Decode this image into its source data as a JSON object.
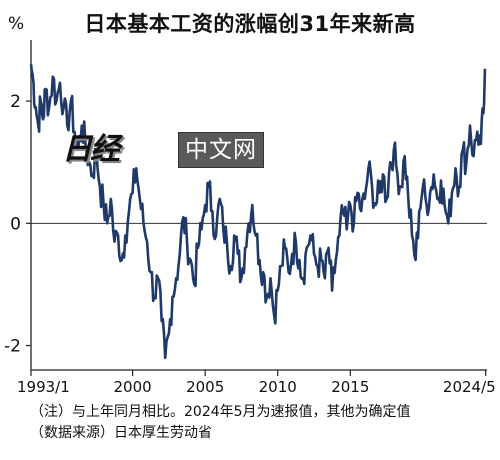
{
  "title": "日本基本工资的涨幅创31年来新高",
  "unit": "%",
  "notes": [
    "（注）与上年同月相比。2024年5月为速报值，其他为确定值",
    "（数据来源）日本厚生劳动省"
  ],
  "watermark": {
    "logo": "日经",
    "text": "中文网"
  },
  "chart_data": {
    "type": "line",
    "title": "日本基本工资的涨幅创31年来新高",
    "xlabel": "",
    "ylabel": "%",
    "xlim": [
      1993.0,
      2024.42
    ],
    "ylim": [
      -2.4,
      3.0
    ],
    "grid": false,
    "yticks": [
      {
        "value": 2,
        "label": "2"
      },
      {
        "value": 0,
        "label": "0"
      },
      {
        "value": -2,
        "label": "-2"
      }
    ],
    "xticks": [
      {
        "value": 1993.0,
        "label": "1993/1"
      },
      {
        "value": 2000.0,
        "label": "2000"
      },
      {
        "value": 2005.0,
        "label": "2005"
      },
      {
        "value": 2010.0,
        "label": "2010"
      },
      {
        "value": 2015.0,
        "label": "2015"
      },
      {
        "value": 2024.33,
        "label": "2024/5"
      }
    ],
    "line_color": "#1f3a68",
    "series": [
      {
        "x": [
          1993.0,
          1993.17,
          1993.33,
          1993.5,
          1993.67,
          1993.83,
          1994.0,
          1994.25,
          1994.5,
          1994.75,
          1995.0,
          1995.25,
          1995.5,
          1995.75,
          1996.0,
          1996.25,
          1996.5,
          1996.75,
          1997.0,
          1997.25,
          1997.5,
          1997.75,
          1998.0,
          1998.25,
          1998.5,
          1998.75,
          1999.0,
          1999.25,
          1999.5,
          1999.75,
          2000.0,
          2000.25,
          2000.5,
          2000.75,
          2001.0,
          2001.25,
          2001.5,
          2001.75,
          2002.0,
          2002.25,
          2002.5,
          2002.75,
          2003.0,
          2003.25,
          2003.5,
          2003.75,
          2004.0,
          2004.25,
          2004.5,
          2004.75,
          2005.0,
          2005.25,
          2005.5,
          2005.75,
          2006.0,
          2006.25,
          2006.5,
          2006.75,
          2007.0,
          2007.25,
          2007.5,
          2007.75,
          2008.0,
          2008.25,
          2008.5,
          2008.75,
          2009.0,
          2009.25,
          2009.5,
          2009.75,
          2010.0,
          2010.25,
          2010.5,
          2010.75,
          2011.0,
          2011.25,
          2011.5,
          2011.75,
          2012.0,
          2012.25,
          2012.5,
          2012.75,
          2013.0,
          2013.25,
          2013.5,
          2013.75,
          2014.0,
          2014.25,
          2014.5,
          2014.75,
          2015.0,
          2015.25,
          2015.5,
          2015.75,
          2016.0,
          2016.25,
          2016.5,
          2016.75,
          2017.0,
          2017.25,
          2017.5,
          2017.75,
          2018.0,
          2018.25,
          2018.5,
          2018.75,
          2019.0,
          2019.25,
          2019.5,
          2019.75,
          2020.0,
          2020.25,
          2020.5,
          2020.75,
          2021.0,
          2021.25,
          2021.5,
          2021.75,
          2022.0,
          2022.25,
          2022.5,
          2022.75,
          2023.0,
          2023.25,
          2023.5,
          2023.75,
          2024.0,
          2024.17,
          2024.33
        ],
        "y": [
          2.6,
          2.3,
          1.9,
          1.6,
          2.0,
          1.7,
          2.2,
          1.9,
          2.4,
          2.0,
          2.3,
          1.9,
          1.6,
          2.0,
          1.5,
          1.2,
          1.6,
          1.3,
          1.0,
          0.8,
          1.2,
          0.6,
          0.3,
          0.0,
          0.4,
          -0.3,
          -0.2,
          -0.6,
          -0.2,
          0.2,
          0.5,
          0.9,
          0.4,
          0.0,
          -0.3,
          -0.8,
          -1.2,
          -0.9,
          -1.6,
          -2.2,
          -1.8,
          -1.2,
          -0.9,
          -0.5,
          0.1,
          -0.3,
          -0.6,
          -1.0,
          -0.4,
          -0.1,
          0.3,
          0.6,
          0.2,
          -0.2,
          0.4,
          -0.1,
          -0.3,
          -0.7,
          -0.2,
          -0.5,
          -0.9,
          -0.4,
          0.0,
          0.3,
          -0.2,
          -0.6,
          -0.8,
          -1.2,
          -0.9,
          -1.5,
          -1.1,
          -0.7,
          -0.4,
          -0.8,
          -0.5,
          -0.3,
          -0.6,
          -0.9,
          -0.4,
          -0.2,
          -0.5,
          -0.7,
          -0.6,
          -0.9,
          -0.4,
          -1.1,
          -0.6,
          -0.2,
          0.2,
          -0.1,
          0.3,
          0.0,
          0.5,
          0.2,
          0.4,
          0.9,
          0.6,
          0.3,
          0.5,
          0.8,
          0.4,
          1.0,
          1.2,
          0.8,
          0.6,
          1.1,
          0.4,
          -0.2,
          -0.6,
          0.2,
          0.6,
          0.3,
          0.5,
          0.8,
          0.4,
          0.7,
          0.3,
          0.0,
          0.5,
          0.9,
          0.6,
          1.2,
          1.0,
          1.6,
          1.1,
          1.5,
          1.3,
          1.8,
          2.5
        ]
      }
    ]
  }
}
